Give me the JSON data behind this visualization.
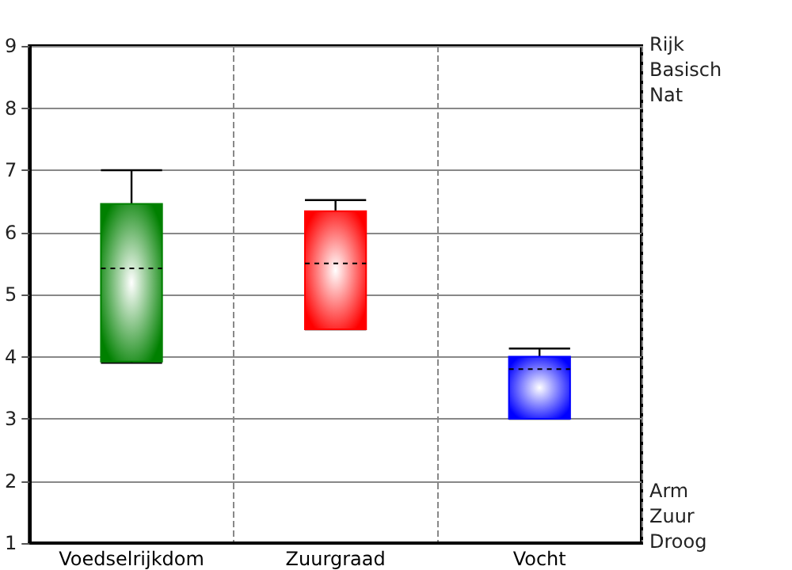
{
  "chart_data": {
    "type": "box",
    "categories": [
      "Voedselrijkdom",
      "Zuurgraad",
      "Vocht"
    ],
    "series": [
      {
        "color": "#008000",
        "boxes": [
          {
            "low": 3.9,
            "q1": 3.92,
            "median": 5.42,
            "q3": 6.46,
            "high": 7.0
          },
          null,
          null
        ]
      },
      {
        "color": "#ff0000",
        "boxes": [
          null,
          {
            "low": 4.44,
            "q1": 4.44,
            "median": 5.5,
            "q3": 6.34,
            "high": 6.52
          },
          null
        ]
      },
      {
        "color": "#0000ff",
        "boxes": [
          null,
          null,
          {
            "low": 3.0,
            "q1": 3.0,
            "median": 3.8,
            "q3": 4.0,
            "high": 4.13
          }
        ]
      }
    ],
    "ylim": [
      1,
      9
    ],
    "yticks": [
      1,
      2,
      3,
      4,
      5,
      6,
      7,
      8,
      9
    ],
    "annotations": [
      "Rijk",
      "Basisch",
      "Nat",
      "Arm",
      "Zuur",
      "Droog"
    ],
    "grid": true
  }
}
